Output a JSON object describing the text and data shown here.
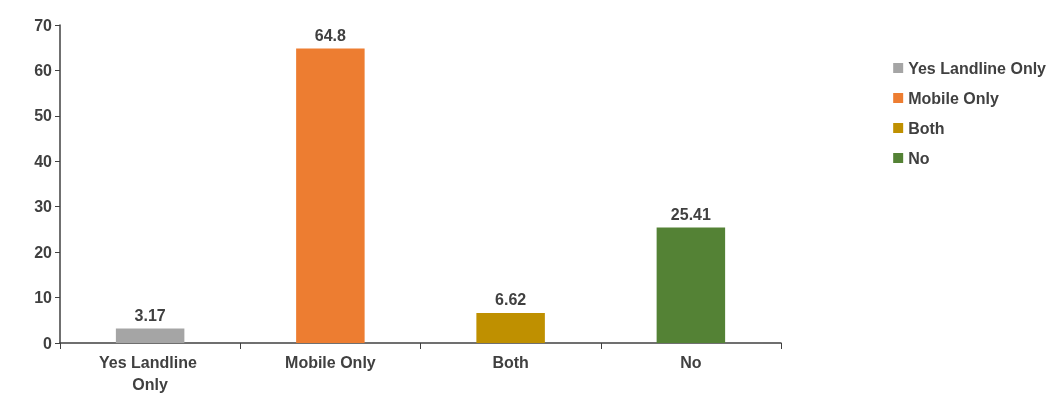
{
  "chart_data": {
    "type": "bar",
    "categories": [
      "Yes Landline Only",
      "Mobile Only",
      "Both",
      "No"
    ],
    "series": [
      {
        "name": "Yes Landline Only",
        "color": "#a5a5a5",
        "values": [
          3.17,
          null,
          null,
          null
        ]
      },
      {
        "name": "Mobile Only",
        "color": "#ed7d31",
        "values": [
          null,
          64.8,
          null,
          null
        ]
      },
      {
        "name": "Both",
        "color": "#bf9000",
        "values": [
          null,
          null,
          6.62,
          null
        ]
      },
      {
        "name": "No",
        "color": "#548235",
        "values": [
          null,
          null,
          null,
          25.41
        ]
      }
    ],
    "stacked": true,
    "ylim": [
      0,
      70
    ],
    "yticks": [
      0,
      10,
      20,
      30,
      40,
      50,
      60,
      70
    ],
    "grid": false,
    "legend": "right",
    "data_labels": true
  }
}
